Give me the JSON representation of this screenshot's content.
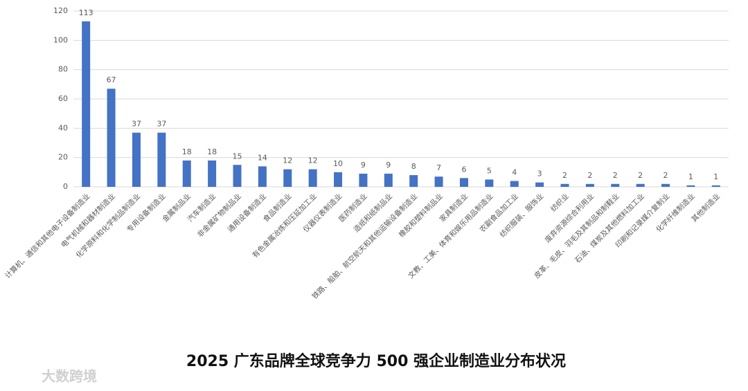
{
  "chart_data": {
    "type": "bar",
    "title": "2025 广东品牌全球竞争力 500 强企业制造业分布状况",
    "watermark": "大数跨境",
    "categories": [
      "计算机、通信和其他电子设备制造业",
      "电气机械和器材制造业",
      "化学原料和化学制品制造业",
      "专用设备制造业",
      "金属制品业",
      "汽车制造业",
      "非金属矿物制品业",
      "通用设备制造业",
      "食品制造业",
      "有色金属冶炼和压延加工业",
      "仪器仪表制造业",
      "医药制造业",
      "造纸和纸制品业",
      "铁路、船舶、航空航天和其他运输设备制造业",
      "橡胶和塑料制品业",
      "家具制造业",
      "文教、工美、体育和娱乐用品制造业",
      "农副食品加工业",
      "纺织服装、服饰业",
      "纺织业",
      "废弃资源综合利用业",
      "皮革、毛皮、羽毛及其制品和制鞋业",
      "石油、煤炭及其他燃料加工业",
      "印刷和记录媒介复制业",
      "化学纤维制造业",
      "其他制造业"
    ],
    "values": [
      113,
      67,
      37,
      37,
      18,
      18,
      15,
      14,
      12,
      12,
      10,
      9,
      9,
      8,
      7,
      6,
      5,
      4,
      3,
      2,
      2,
      2,
      2,
      2,
      1,
      1
    ],
    "color": "#4472c4",
    "ylim": [
      0,
      120
    ],
    "yticks": [
      0,
      20,
      40,
      60,
      80,
      100,
      120
    ],
    "grid": true
  }
}
